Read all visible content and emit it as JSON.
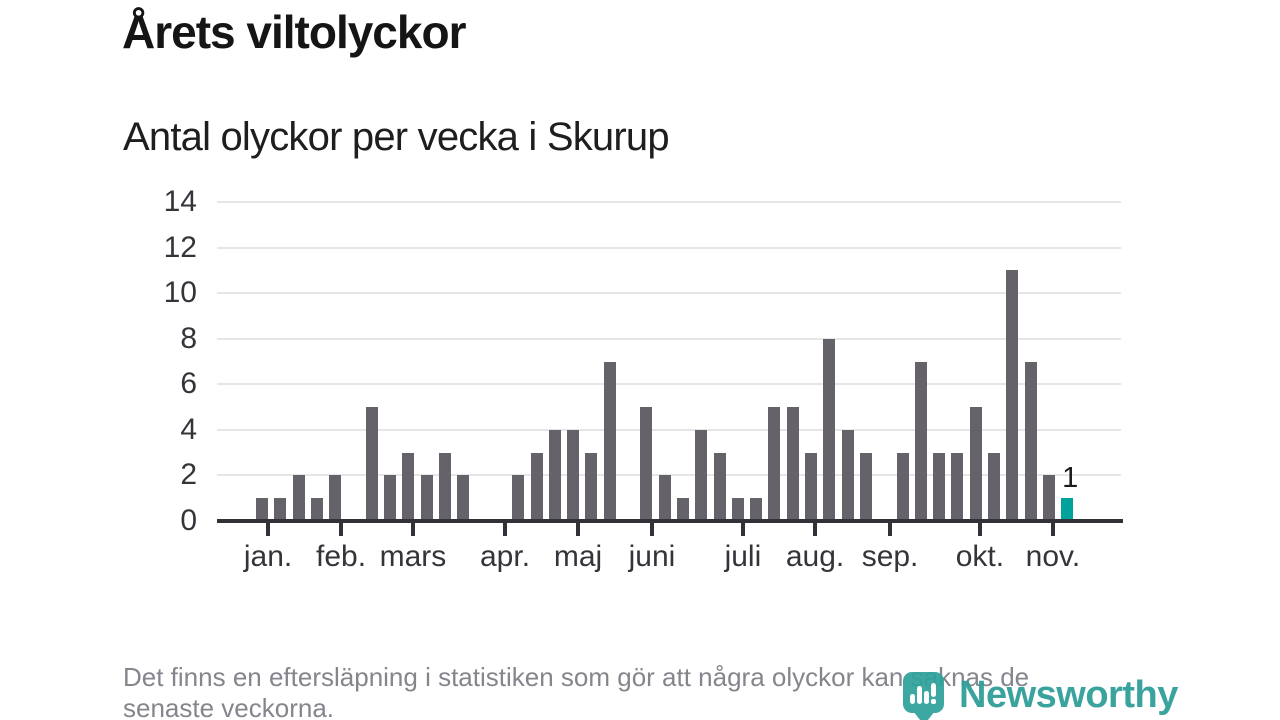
{
  "header": {
    "title": "Årets viltolyckor",
    "subtitle": "Antal olyckor per vecka i Skurup"
  },
  "chart_data": {
    "type": "bar",
    "title": "Årets viltolyckor",
    "subtitle": "Antal olyckor per vecka i Skurup",
    "x_unit": "vecka",
    "ylim": [
      0,
      14
    ],
    "yticks": [
      0,
      2,
      4,
      6,
      8,
      10,
      12,
      14
    ],
    "grid": "horizontal",
    "legend": "none",
    "weekly_values": [
      1,
      1,
      2,
      1,
      2,
      0,
      5,
      2,
      3,
      2,
      3,
      2,
      0,
      0,
      2,
      3,
      4,
      4,
      3,
      7,
      0,
      5,
      2,
      1,
      4,
      3,
      1,
      1,
      5,
      5,
      3,
      8,
      4,
      3,
      0,
      3,
      7,
      3,
      3,
      5,
      3,
      11,
      7,
      2,
      1
    ],
    "highlight": {
      "index": 44,
      "value": 1,
      "label": "1"
    },
    "months": [
      {
        "label": "jan.",
        "week": 0.33
      },
      {
        "label": "feb.",
        "week": 4.32
      },
      {
        "label": "mars",
        "week": 8.25
      },
      {
        "label": "apr.",
        "week": 13.28
      },
      {
        "label": "maj",
        "week": 17.27
      },
      {
        "label": "juni",
        "week": 21.31
      },
      {
        "label": "juli",
        "week": 26.28
      },
      {
        "label": "aug.",
        "week": 30.22
      },
      {
        "label": "sep.",
        "week": 34.32
      },
      {
        "label": "okt.",
        "week": 39.23
      },
      {
        "label": "nov.",
        "week": 43.22
      }
    ],
    "colors": {
      "bar": "#656369",
      "highlight": "#00A29B",
      "gridline": "#E6E5E8",
      "axis": "#323137",
      "tick_label": "#35343A",
      "value_label": "#1b1b1b"
    }
  },
  "footer": {
    "lines": [
      "Det finns en eftersläpning i statistiken som gör att några olyckor kan saknas de",
      "senaste veckorna."
    ]
  },
  "logo": {
    "wordmark": "Newsworthy",
    "color": "#2D9D97"
  }
}
